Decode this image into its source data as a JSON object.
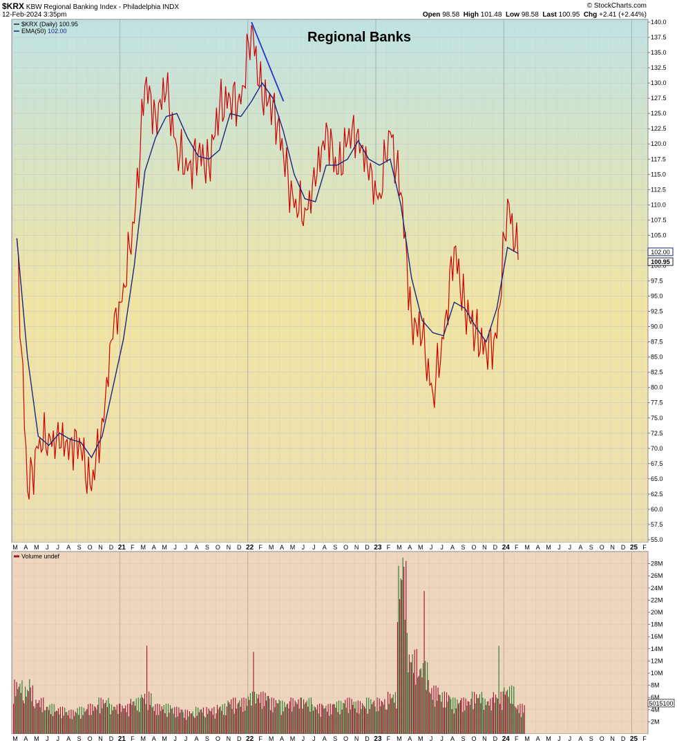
{
  "header": {
    "symbol": "$KRX",
    "name": "KBW Regional Banking Index - Philadelphia",
    "exchange": "INDX",
    "date": "12-Feb-2024 3:35pm",
    "credit": "© StockCharts.com",
    "open_label": "Open",
    "open": "98.58",
    "high_label": "High",
    "high": "101.48",
    "low_label": "Low",
    "low": "98.58",
    "last_label": "Last",
    "last": "100.95",
    "chg_label": "Chg",
    "chg": "+2.41 (+2.44%)"
  },
  "legend": {
    "price": "$KRX (Daily) 100.95",
    "ema_label": "EMA(50)",
    "ema_value": "102.00",
    "volume": "Volume undef"
  },
  "badges": {
    "ema": "102.00",
    "last": "100.95",
    "volume": "5015100"
  },
  "colors": {
    "price_line": "#cc0000",
    "price_line_dark": "#222222",
    "ema_line": "#1a237e",
    "trend_line": "#2233cc",
    "volume_up": "#2e7d32",
    "volume_down": "#a31535",
    "bg_top": "#bfe3e3",
    "bg_mid": "#f1e4a2",
    "bg_bottom": "#ecdfb2",
    "vol_bg": "#eed5bd"
  },
  "chart_data": [
    {
      "type": "line",
      "title": "Regional Banks",
      "ylim": [
        55,
        140
      ],
      "y_ticks": [
        "140.0",
        "137.5",
        "135.0",
        "132.5",
        "130.0",
        "127.5",
        "125.0",
        "122.5",
        "120.0",
        "117.5",
        "115.0",
        "112.5",
        "110.0",
        "107.5",
        "105.0",
        "102.5",
        "100.0",
        "97.5",
        "95.0",
        "92.5",
        "90.0",
        "87.5",
        "85.0",
        "82.5",
        "80.0",
        "77.5",
        "75.0",
        "72.5",
        "70.0",
        "67.5",
        "65.0",
        "62.5",
        "60.0",
        "57.5",
        "55.0"
      ],
      "x_labels": [
        "M",
        "A",
        "M",
        "J",
        "J",
        "A",
        "S",
        "O",
        "N",
        "D",
        "21",
        "F",
        "M",
        "A",
        "M",
        "J",
        "J",
        "A",
        "S",
        "O",
        "N",
        "D",
        "22",
        "F",
        "M",
        "A",
        "M",
        "J",
        "J",
        "A",
        "S",
        "O",
        "N",
        "D",
        "23",
        "F",
        "M",
        "A",
        "M",
        "J",
        "J",
        "A",
        "S",
        "O",
        "N",
        "D",
        "24",
        "F",
        "M",
        "A",
        "M",
        "J",
        "J",
        "A",
        "S",
        "O",
        "N",
        "D",
        "25",
        "F"
      ],
      "x_years": [
        "21",
        "22",
        "23",
        "24",
        "25"
      ],
      "series": [
        {
          "name": "$KRX (Daily)",
          "x": [
            "2020-03",
            "2020-04",
            "2020-05",
            "2020-06",
            "2020-07",
            "2020-08",
            "2020-09",
            "2020-10",
            "2020-11",
            "2020-12",
            "2021-01",
            "2021-02",
            "2021-03",
            "2021-04",
            "2021-05",
            "2021-06",
            "2021-07",
            "2021-08",
            "2021-09",
            "2021-10",
            "2021-11",
            "2021-12",
            "2022-01",
            "2022-02",
            "2022-03",
            "2022-04",
            "2022-05",
            "2022-06",
            "2022-07",
            "2022-08",
            "2022-09",
            "2022-10",
            "2022-11",
            "2022-12",
            "2023-01",
            "2023-02",
            "2023-03",
            "2023-04",
            "2023-05",
            "2023-06",
            "2023-07",
            "2023-08",
            "2023-09",
            "2023-10",
            "2023-11",
            "2023-12",
            "2024-01",
            "2024-02"
          ],
          "y": [
            104.5,
            63,
            70,
            72.5,
            70,
            71.5,
            70,
            63,
            75,
            88,
            97,
            107,
            129.5,
            125,
            128.5,
            119.5,
            115.5,
            118.5,
            116.5,
            126,
            127.5,
            126.5,
            139.5,
            127,
            127,
            118,
            109.5,
            109.5,
            113,
            123.5,
            115,
            120.5,
            122.5,
            114,
            112,
            122,
            112,
            91.5,
            88,
            79,
            88,
            103,
            93,
            89,
            86,
            88,
            111,
            100.95
          ]
        },
        {
          "name": "EMA(50)",
          "x": [
            "2020-03",
            "2020-04",
            "2020-05",
            "2020-06",
            "2020-07",
            "2020-08",
            "2020-09",
            "2020-10",
            "2020-11",
            "2020-12",
            "2021-01",
            "2021-02",
            "2021-03",
            "2021-04",
            "2021-05",
            "2021-06",
            "2021-07",
            "2021-08",
            "2021-09",
            "2021-10",
            "2021-11",
            "2021-12",
            "2022-01",
            "2022-02",
            "2022-03",
            "2022-04",
            "2022-05",
            "2022-06",
            "2022-07",
            "2022-08",
            "2022-09",
            "2022-10",
            "2022-11",
            "2022-12",
            "2023-01",
            "2023-02",
            "2023-03",
            "2023-04",
            "2023-05",
            "2023-06",
            "2023-07",
            "2023-08",
            "2023-09",
            "2023-10",
            "2023-11",
            "2023-12",
            "2024-01",
            "2024-02"
          ],
          "y": [
            104.5,
            85,
            72,
            70.5,
            72.5,
            71.5,
            71,
            68.5,
            72,
            80,
            88,
            100,
            115.5,
            121,
            124.5,
            125,
            121,
            118,
            117.5,
            119,
            125,
            124.5,
            127,
            130,
            127.5,
            122,
            115,
            111,
            110.5,
            116.5,
            116.5,
            117.5,
            120.5,
            117.5,
            116.5,
            117.5,
            110,
            98,
            91,
            89,
            88.5,
            94,
            93,
            90,
            87.5,
            93,
            103,
            102.0
          ]
        }
      ],
      "trend_line": {
        "x": [
          "2022-01",
          "2022-04"
        ],
        "y": [
          140,
          127
        ]
      }
    },
    {
      "type": "bar",
      "title": "Volume",
      "ylim": [
        0,
        30
      ],
      "y_unit": "M",
      "y_ticks": [
        "28M",
        "26M",
        "24M",
        "22M",
        "20M",
        "18M",
        "16M",
        "14M",
        "12M",
        "10M",
        "8M",
        "6M",
        "4M",
        "2M"
      ],
      "x": [
        "2020-03",
        "2020-04",
        "2020-05",
        "2020-06",
        "2020-07",
        "2020-08",
        "2020-09",
        "2020-10",
        "2020-11",
        "2020-12",
        "2021-01",
        "2021-02",
        "2021-03",
        "2021-04",
        "2021-05",
        "2021-06",
        "2021-07",
        "2021-08",
        "2021-09",
        "2021-10",
        "2021-11",
        "2021-12",
        "2022-01",
        "2022-02",
        "2022-03",
        "2022-04",
        "2022-05",
        "2022-06",
        "2022-07",
        "2022-08",
        "2022-09",
        "2022-10",
        "2022-11",
        "2022-12",
        "2023-01",
        "2023-02",
        "2023-03",
        "2023-04",
        "2023-05",
        "2023-06",
        "2023-07",
        "2023-08",
        "2023-09",
        "2023-10",
        "2023-11",
        "2023-12",
        "2024-01",
        "2024-02"
      ],
      "values": [
        9,
        8,
        6,
        5,
        4.5,
        4,
        4.5,
        5,
        6,
        5,
        5,
        6,
        7,
        5,
        5,
        4.5,
        4,
        4.5,
        4.5,
        5,
        6,
        6,
        7,
        7,
        6,
        5.5,
        6,
        6,
        5,
        5,
        5.5,
        6,
        5.5,
        6,
        6,
        7,
        28.5,
        14,
        12,
        8,
        7,
        6,
        6,
        7,
        6,
        7,
        8,
        5
      ],
      "peaks": [
        {
          "x": "2020-04",
          "y": 9
        },
        {
          "x": "2021-03",
          "y": 14.5
        },
        {
          "x": "2022-01",
          "y": 13.5
        },
        {
          "x": "2023-03",
          "y": 29
        },
        {
          "x": "2023-05",
          "y": 23.5
        },
        {
          "x": "2023-12",
          "y": 14.5
        }
      ]
    }
  ]
}
